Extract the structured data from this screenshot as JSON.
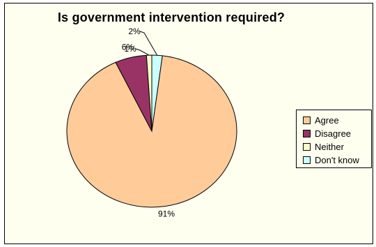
{
  "chart_data": {
    "type": "pie",
    "title": "Is government intervention required?",
    "categories": [
      "Agree",
      "Disagree",
      "Neither",
      "Don't know"
    ],
    "values": [
      91,
      6,
      1,
      2
    ],
    "labels": [
      "91%",
      "6%",
      "1%",
      "2%"
    ],
    "colors": [
      "#ffcc99",
      "#993366",
      "#ffffcc",
      "#ccffff"
    ],
    "legend": "right"
  }
}
